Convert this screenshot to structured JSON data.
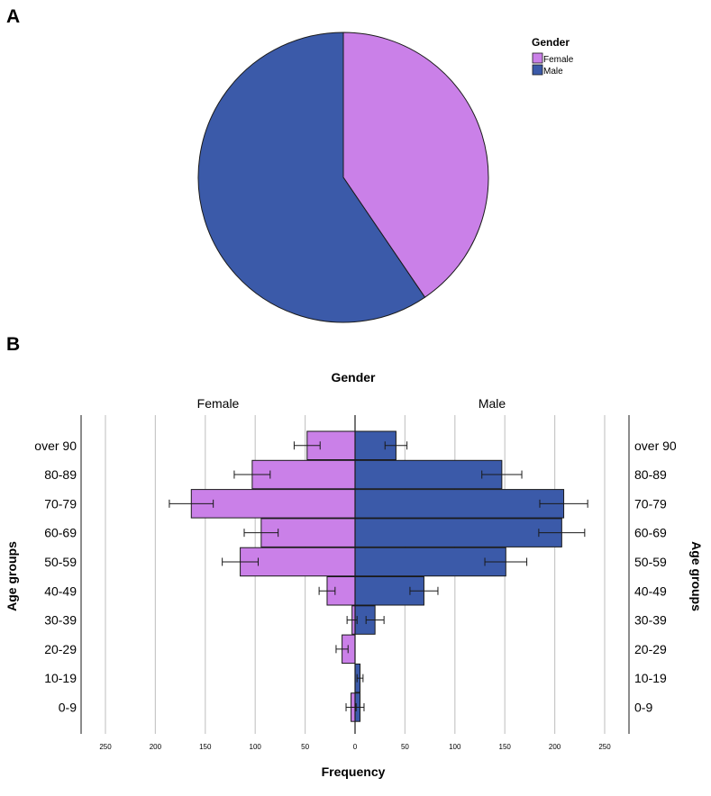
{
  "panels": {
    "a": "A",
    "b": "B"
  },
  "colors": {
    "female": "#ca80e8",
    "male": "#3b5aa9",
    "outline": "#1a1a1a",
    "grid": "#c8c8c8"
  },
  "chart_data": [
    {
      "type": "pie",
      "panel": "A",
      "legend_title": "Gender",
      "legend_position": "top-right",
      "labels": [
        "Female",
        "Male"
      ],
      "values": [
        40.5,
        59.5
      ]
    },
    {
      "type": "bar",
      "orientation": "horizontal",
      "subtype": "population-pyramid",
      "panel": "B",
      "title": "Gender",
      "xlabel": "Frequency",
      "ylabel": "Age groups",
      "xlim": [
        -250,
        250
      ],
      "ticks": [
        "250",
        "200",
        "150",
        "100",
        "50",
        "0",
        "50",
        "100",
        "150",
        "200",
        "250"
      ],
      "tick_values": [
        -250,
        -200,
        -150,
        -100,
        -50,
        0,
        50,
        100,
        150,
        200,
        250
      ],
      "categories": [
        "over 90",
        "80-89",
        "70-79",
        "60-69",
        "50-59",
        "40-49",
        "30-39",
        "20-29",
        "10-19",
        "0-9"
      ],
      "series": [
        {
          "name": "Female",
          "values": [
            48,
            103,
            164,
            94,
            115,
            28,
            3,
            13,
            0,
            4
          ],
          "error": [
            13,
            18,
            22,
            17,
            18,
            8,
            5,
            6,
            0,
            5
          ]
        },
        {
          "name": "Male",
          "values": [
            41,
            147,
            209,
            207,
            151,
            69,
            20,
            0,
            5,
            5
          ],
          "error": [
            11,
            20,
            24,
            23,
            21,
            14,
            9,
            0,
            3,
            4
          ]
        }
      ]
    }
  ]
}
